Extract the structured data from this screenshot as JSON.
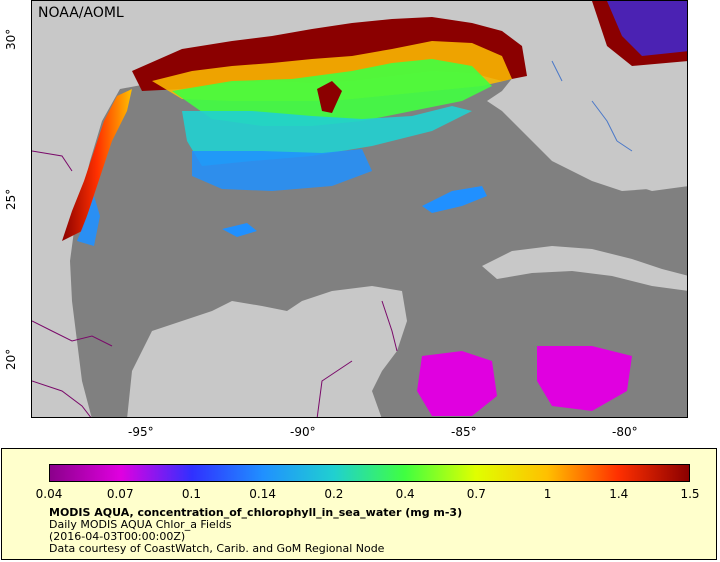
{
  "map": {
    "credit": "NOAA/AOML",
    "lat_labels": [
      "30°",
      "25°",
      "20°"
    ],
    "lon_labels": [
      "-95°",
      "-90°",
      "-85°",
      "-80°"
    ],
    "extent": {
      "lon": [
        -98,
        -77.6
      ],
      "lat": [
        18,
        30.9
      ]
    },
    "colors": {
      "land": "#c8c8c8",
      "no_data": "#808080",
      "border": "#7a0a6a",
      "river": "#4a78c8"
    }
  },
  "legend": {
    "ticks": [
      "0.04",
      "0.07",
      "0.1",
      "0.14",
      "0.2",
      "0.4",
      "0.7",
      "1",
      "1.4",
      "1.5"
    ],
    "title": "MODIS AQUA, concentration_of_chlorophyll_in_sea_water (mg m-3)",
    "line1": "Daily MODIS AQUA Chlor_a Fields",
    "line2": "(2016-04-03T00:00:00Z)",
    "line3": "Data courtesy of CoastWatch, Carib. and GoM Regional Node",
    "colormap": [
      "#8b008b",
      "#e000e0",
      "#3030ff",
      "#2090ff",
      "#20d0d0",
      "#40ff40",
      "#e0ff00",
      "#ffc000",
      "#ff3000",
      "#8b0000"
    ]
  }
}
